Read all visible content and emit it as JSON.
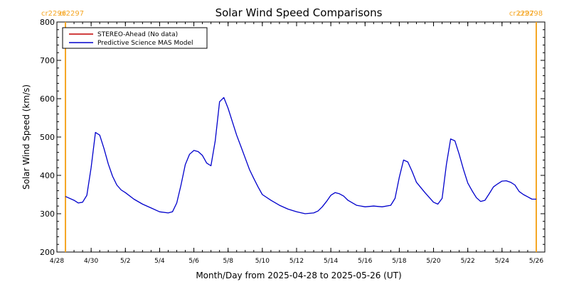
{
  "chart_data": {
    "type": "line",
    "title": "Solar Wind Speed Comparisons",
    "xlabel": "Month/Day from 2025-04-28 to 2025-05-26 (UT)",
    "ylabel": "Solar Wind Speed (km/s)",
    "x_unit": "day",
    "xlim": [
      "2025-04-28",
      "2025-05-26 12:00"
    ],
    "ylim": [
      200,
      800
    ],
    "yticks": [
      200,
      300,
      400,
      500,
      600,
      700,
      800
    ],
    "xticks": [
      {
        "date": "2025-04-28",
        "label": "4/28"
      },
      {
        "date": "2025-04-30",
        "label": "4/30"
      },
      {
        "date": "2025-05-02",
        "label": "5/2"
      },
      {
        "date": "2025-05-04",
        "label": "5/4"
      },
      {
        "date": "2025-05-06",
        "label": "5/6"
      },
      {
        "date": "2025-05-08",
        "label": "5/8"
      },
      {
        "date": "2025-05-10",
        "label": "5/10"
      },
      {
        "date": "2025-05-12",
        "label": "5/12"
      },
      {
        "date": "2025-05-14",
        "label": "5/14"
      },
      {
        "date": "2025-05-16",
        "label": "5/16"
      },
      {
        "date": "2025-05-18",
        "label": "5/18"
      },
      {
        "date": "2025-05-20",
        "label": "5/20"
      },
      {
        "date": "2025-05-22",
        "label": "5/22"
      },
      {
        "date": "2025-05-24",
        "label": "5/24"
      },
      {
        "date": "2025-05-26",
        "label": "5/26"
      }
    ],
    "carrington": [
      {
        "date": "2025-04-28 12:00",
        "left_label": "cr2296",
        "right_label": "cr2297",
        "color": "#f5a623"
      },
      {
        "date": "2025-05-26",
        "left_label": "cr2297",
        "right_label": "cr2298",
        "color": "#f5a623"
      }
    ],
    "legend": {
      "placement": "top-left"
    },
    "series": [
      {
        "name": "STEREO-Ahead (No data)",
        "color": "#c00000",
        "x": [],
        "values": []
      },
      {
        "name": "Predictive Science MAS Model",
        "color": "#0000cc",
        "x": [
          "2025-04-28 12:00",
          "2025-04-29 00:00",
          "2025-04-29 06:00",
          "2025-04-29 12:00",
          "2025-04-29 18:00",
          "2025-04-30 00:00",
          "2025-04-30 06:00",
          "2025-04-30 12:00",
          "2025-04-30 18:00",
          "2025-05-01 00:00",
          "2025-05-01 06:00",
          "2025-05-01 12:00",
          "2025-05-01 18:00",
          "2025-05-02 00:00",
          "2025-05-02 12:00",
          "2025-05-03 00:00",
          "2025-05-03 12:00",
          "2025-05-04 00:00",
          "2025-05-04 12:00",
          "2025-05-04 18:00",
          "2025-05-05 00:00",
          "2025-05-05 06:00",
          "2025-05-05 12:00",
          "2025-05-05 18:00",
          "2025-05-06 00:00",
          "2025-05-06 06:00",
          "2025-05-06 12:00",
          "2025-05-06 18:00",
          "2025-05-07 00:00",
          "2025-05-07 06:00",
          "2025-05-07 12:00",
          "2025-05-07 18:00",
          "2025-05-08 00:00",
          "2025-05-08 06:00",
          "2025-05-08 12:00",
          "2025-05-08 18:00",
          "2025-05-09 00:00",
          "2025-05-09 06:00",
          "2025-05-09 12:00",
          "2025-05-09 18:00",
          "2025-05-10 00:00",
          "2025-05-10 12:00",
          "2025-05-11 00:00",
          "2025-05-11 12:00",
          "2025-05-12 00:00",
          "2025-05-12 12:00",
          "2025-05-13 00:00",
          "2025-05-13 06:00",
          "2025-05-13 12:00",
          "2025-05-13 18:00",
          "2025-05-14 00:00",
          "2025-05-14 06:00",
          "2025-05-14 12:00",
          "2025-05-14 18:00",
          "2025-05-15 00:00",
          "2025-05-15 12:00",
          "2025-05-16 00:00",
          "2025-05-16 12:00",
          "2025-05-17 00:00",
          "2025-05-17 12:00",
          "2025-05-17 18:00",
          "2025-05-18 00:00",
          "2025-05-18 06:00",
          "2025-05-18 12:00",
          "2025-05-18 18:00",
          "2025-05-19 00:00",
          "2025-05-19 12:00",
          "2025-05-20 00:00",
          "2025-05-20 06:00",
          "2025-05-20 12:00",
          "2025-05-20 18:00",
          "2025-05-21 00:00",
          "2025-05-21 06:00",
          "2025-05-21 12:00",
          "2025-05-21 18:00",
          "2025-05-22 00:00",
          "2025-05-22 06:00",
          "2025-05-22 12:00",
          "2025-05-22 18:00",
          "2025-05-23 00:00",
          "2025-05-23 06:00",
          "2025-05-23 12:00",
          "2025-05-23 18:00",
          "2025-05-24 00:00",
          "2025-05-24 06:00",
          "2025-05-24 12:00",
          "2025-05-24 18:00",
          "2025-05-25 00:00",
          "2025-05-25 06:00",
          "2025-05-25 12:00",
          "2025-05-25 18:00",
          "2025-05-26 00:00"
        ],
        "values": [
          345,
          335,
          328,
          330,
          348,
          420,
          512,
          505,
          470,
          430,
          398,
          375,
          362,
          355,
          338,
          325,
          315,
          305,
          302,
          305,
          328,
          375,
          428,
          455,
          465,
          462,
          452,
          432,
          425,
          490,
          592,
          603,
          575,
          540,
          505,
          475,
          445,
          415,
          392,
          370,
          350,
          335,
          322,
          312,
          305,
          300,
          302,
          307,
          318,
          332,
          348,
          355,
          352,
          346,
          335,
          322,
          318,
          320,
          318,
          322,
          340,
          395,
          440,
          435,
          410,
          382,
          355,
          330,
          325,
          340,
          428,
          495,
          490,
          455,
          415,
          380,
          360,
          342,
          332,
          335,
          352,
          370,
          378,
          385,
          386,
          382,
          375,
          358,
          350,
          344,
          338,
          338
        ]
      }
    ]
  }
}
